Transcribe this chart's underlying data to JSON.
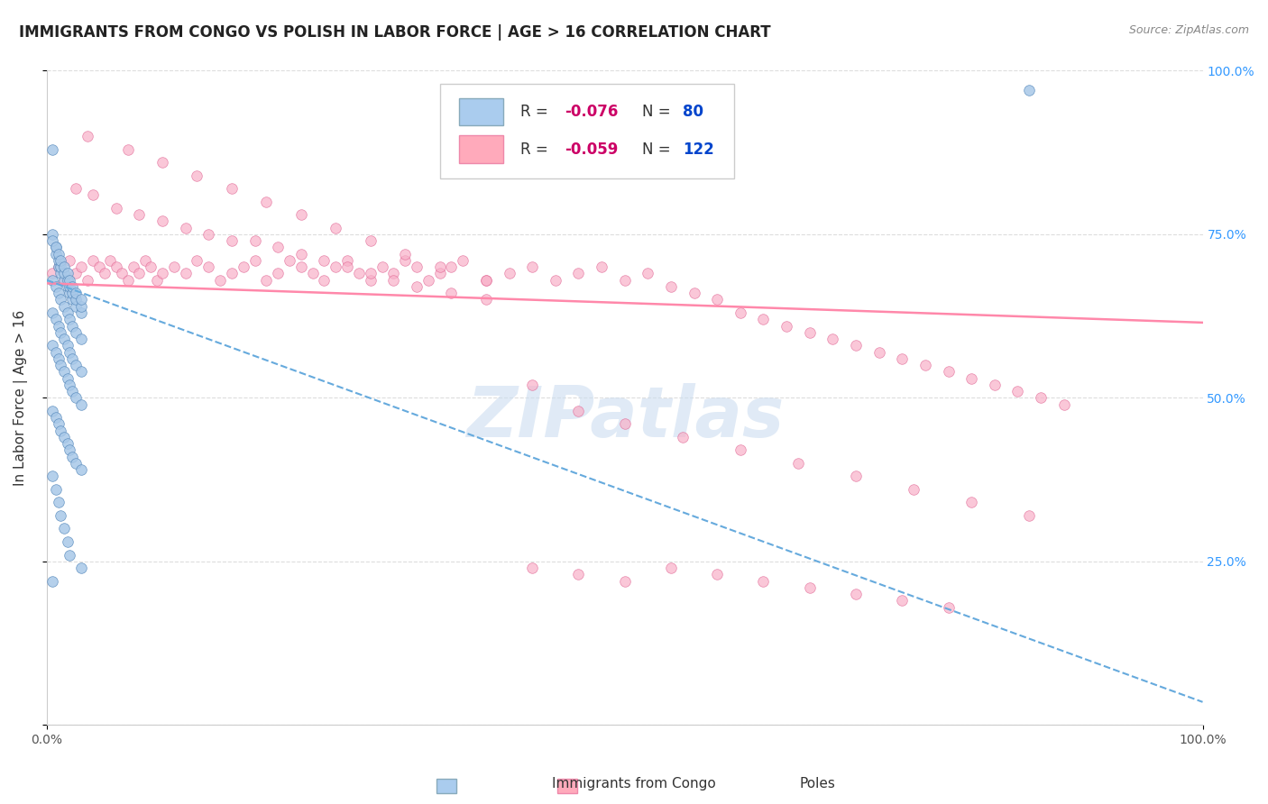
{
  "title": "IMMIGRANTS FROM CONGO VS POLISH IN LABOR FORCE | AGE > 16 CORRELATION CHART",
  "source": "Source: ZipAtlas.com",
  "ylabel": "In Labor Force | Age > 16",
  "xlim": [
    0.0,
    1.0
  ],
  "ylim": [
    0.0,
    1.0
  ],
  "congo_scatter": {
    "color": "#a8c8e8",
    "edge_color": "#5588bb",
    "alpha": 0.85,
    "size": 70,
    "x": [
      0.005,
      0.008,
      0.01,
      0.012,
      0.015,
      0.018,
      0.02,
      0.022,
      0.025,
      0.03,
      0.005,
      0.008,
      0.01,
      0.012,
      0.015,
      0.018,
      0.02,
      0.022,
      0.025,
      0.03,
      0.005,
      0.008,
      0.01,
      0.012,
      0.015,
      0.018,
      0.02,
      0.022,
      0.025,
      0.03,
      0.005,
      0.008,
      0.01,
      0.012,
      0.015,
      0.018,
      0.02,
      0.022,
      0.025,
      0.03,
      0.005,
      0.008,
      0.01,
      0.012,
      0.015,
      0.018,
      0.02,
      0.022,
      0.025,
      0.03,
      0.005,
      0.008,
      0.01,
      0.012,
      0.015,
      0.018,
      0.02,
      0.022,
      0.025,
      0.03,
      0.005,
      0.008,
      0.01,
      0.012,
      0.015,
      0.018,
      0.02,
      0.022,
      0.025,
      0.03,
      0.005,
      0.008,
      0.01,
      0.012,
      0.015,
      0.018,
      0.02,
      0.03,
      0.85,
      0.005
    ],
    "y": [
      0.88,
      0.72,
      0.7,
      0.69,
      0.68,
      0.67,
      0.66,
      0.65,
      0.64,
      0.63,
      0.75,
      0.73,
      0.71,
      0.7,
      0.69,
      0.68,
      0.67,
      0.66,
      0.65,
      0.64,
      0.74,
      0.73,
      0.72,
      0.71,
      0.7,
      0.69,
      0.68,
      0.67,
      0.66,
      0.65,
      0.63,
      0.62,
      0.61,
      0.6,
      0.59,
      0.58,
      0.57,
      0.56,
      0.55,
      0.54,
      0.68,
      0.67,
      0.66,
      0.65,
      0.64,
      0.63,
      0.62,
      0.61,
      0.6,
      0.59,
      0.58,
      0.57,
      0.56,
      0.55,
      0.54,
      0.53,
      0.52,
      0.51,
      0.5,
      0.49,
      0.48,
      0.47,
      0.46,
      0.45,
      0.44,
      0.43,
      0.42,
      0.41,
      0.4,
      0.39,
      0.38,
      0.36,
      0.34,
      0.32,
      0.3,
      0.28,
      0.26,
      0.24,
      0.97,
      0.22
    ]
  },
  "poles_scatter": {
    "color": "#f8b0c8",
    "edge_color": "#e06090",
    "alpha": 0.7,
    "size": 70,
    "x": [
      0.005,
      0.01,
      0.015,
      0.02,
      0.025,
      0.03,
      0.035,
      0.04,
      0.045,
      0.05,
      0.055,
      0.06,
      0.065,
      0.07,
      0.075,
      0.08,
      0.085,
      0.09,
      0.095,
      0.1,
      0.11,
      0.12,
      0.13,
      0.14,
      0.15,
      0.16,
      0.17,
      0.18,
      0.19,
      0.2,
      0.21,
      0.22,
      0.23,
      0.24,
      0.25,
      0.26,
      0.27,
      0.28,
      0.29,
      0.3,
      0.31,
      0.32,
      0.33,
      0.34,
      0.35,
      0.36,
      0.38,
      0.4,
      0.42,
      0.44,
      0.46,
      0.48,
      0.5,
      0.52,
      0.54,
      0.56,
      0.58,
      0.6,
      0.62,
      0.64,
      0.66,
      0.68,
      0.7,
      0.72,
      0.74,
      0.76,
      0.78,
      0.8,
      0.82,
      0.84,
      0.86,
      0.88,
      0.025,
      0.04,
      0.06,
      0.08,
      0.1,
      0.12,
      0.14,
      0.16,
      0.18,
      0.2,
      0.22,
      0.24,
      0.26,
      0.28,
      0.3,
      0.32,
      0.35,
      0.38,
      0.42,
      0.46,
      0.5,
      0.55,
      0.6,
      0.65,
      0.7,
      0.75,
      0.8,
      0.85,
      0.035,
      0.07,
      0.1,
      0.13,
      0.16,
      0.19,
      0.22,
      0.25,
      0.28,
      0.31,
      0.34,
      0.38,
      0.42,
      0.46,
      0.5,
      0.54,
      0.58,
      0.62,
      0.66,
      0.7,
      0.74,
      0.78
    ],
    "y": [
      0.69,
      0.7,
      0.68,
      0.71,
      0.69,
      0.7,
      0.68,
      0.71,
      0.7,
      0.69,
      0.71,
      0.7,
      0.69,
      0.68,
      0.7,
      0.69,
      0.71,
      0.7,
      0.68,
      0.69,
      0.7,
      0.69,
      0.71,
      0.7,
      0.68,
      0.69,
      0.7,
      0.71,
      0.68,
      0.69,
      0.71,
      0.7,
      0.69,
      0.68,
      0.7,
      0.71,
      0.69,
      0.68,
      0.7,
      0.69,
      0.71,
      0.7,
      0.68,
      0.69,
      0.7,
      0.71,
      0.68,
      0.69,
      0.7,
      0.68,
      0.69,
      0.7,
      0.68,
      0.69,
      0.67,
      0.66,
      0.65,
      0.63,
      0.62,
      0.61,
      0.6,
      0.59,
      0.58,
      0.57,
      0.56,
      0.55,
      0.54,
      0.53,
      0.52,
      0.51,
      0.5,
      0.49,
      0.82,
      0.81,
      0.79,
      0.78,
      0.77,
      0.76,
      0.75,
      0.74,
      0.74,
      0.73,
      0.72,
      0.71,
      0.7,
      0.69,
      0.68,
      0.67,
      0.66,
      0.65,
      0.52,
      0.48,
      0.46,
      0.44,
      0.42,
      0.4,
      0.38,
      0.36,
      0.34,
      0.32,
      0.9,
      0.88,
      0.86,
      0.84,
      0.82,
      0.8,
      0.78,
      0.76,
      0.74,
      0.72,
      0.7,
      0.68,
      0.24,
      0.23,
      0.22,
      0.24,
      0.23,
      0.22,
      0.21,
      0.2,
      0.19,
      0.18
    ]
  },
  "congo_line": {
    "color": "#66aadd",
    "style": "--",
    "linewidth": 1.5,
    "x0": 0.0,
    "y0": 0.68,
    "x1": 1.0,
    "y1": 0.035
  },
  "poles_line": {
    "color": "#ff88aa",
    "style": "-",
    "linewidth": 1.8,
    "x0": 0.0,
    "y0": 0.675,
    "x1": 1.0,
    "y1": 0.615
  },
  "watermark": "ZIPatlas",
  "watermark_color": "#ccddf0",
  "background_color": "#ffffff",
  "grid_color": "#dddddd",
  "title_fontsize": 12,
  "axis_label_fontsize": 11,
  "tick_fontsize": 10,
  "right_tick_color": "#3399ff",
  "legend_r1_R": "-0.076",
  "legend_r1_N": "80",
  "legend_r2_R": "-0.059",
  "legend_r2_N": "122",
  "legend_color1": "#aaccee",
  "legend_color2": "#ffaabb",
  "bottom_legend_congo": "Immigrants from Congo",
  "bottom_legend_poles": "Poles"
}
